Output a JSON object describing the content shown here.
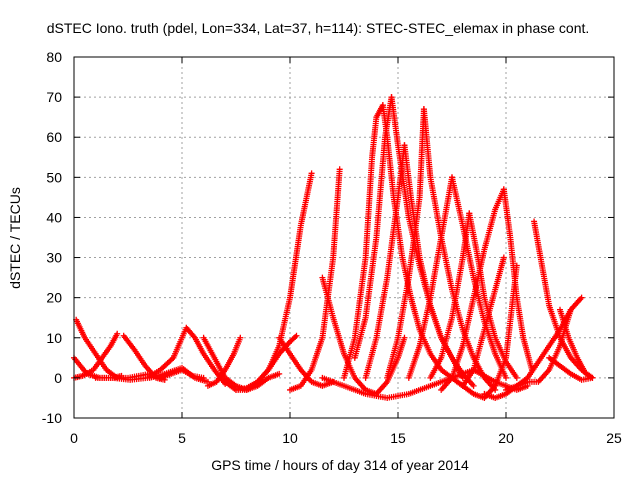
{
  "chart_data": {
    "type": "scatter",
    "title": "dSTEC Iono. truth (pdel, Lon=334, Lat=37, h=114): STEC-STEC_elemax in phase cont.",
    "xlabel": "GPS time / hours of day 314 of year 2014",
    "ylabel": "dSTEC  / TECUs",
    "xlim": [
      0,
      25
    ],
    "ylim": [
      -10,
      80
    ],
    "xticks": [
      "0",
      "5",
      "10",
      "15",
      "20",
      "25"
    ],
    "yticks": [
      "-10",
      "0",
      "10",
      "20",
      "30",
      "40",
      "50",
      "60",
      "70",
      "80"
    ],
    "grid": true,
    "marker": "+",
    "color": "#ff0000",
    "series": [
      {
        "x": [
          0.0,
          0.6,
          1.2,
          1.8,
          2.2
        ],
        "y": [
          5,
          1,
          0,
          0,
          0.5
        ]
      },
      {
        "x": [
          0.1,
          0.5,
          1.0,
          1.5,
          2.0,
          2.5,
          3.0,
          3.5
        ],
        "y": [
          14.5,
          10,
          6,
          2,
          0,
          0,
          0.5,
          1
        ]
      },
      {
        "x": [
          0.0,
          0.4,
          0.9,
          1.3,
          1.7,
          2.0
        ],
        "y": [
          0,
          0.5,
          2,
          5,
          8,
          11
        ]
      },
      {
        "x": [
          2.3,
          2.8,
          3.3,
          3.8,
          4.2
        ],
        "y": [
          10.5,
          7,
          3,
          0,
          -0.5
        ]
      },
      {
        "x": [
          1.0,
          1.8,
          2.6,
          3.4,
          4.0,
          4.6,
          5.2,
          5.6,
          6.0,
          6.5,
          7.0
        ],
        "y": [
          0,
          0,
          -0.5,
          0,
          2,
          5,
          12.5,
          10,
          6,
          2,
          -1.5
        ]
      },
      {
        "x": [
          3.5,
          4.2,
          5.0,
          5.6,
          6.2
        ],
        "y": [
          0,
          1,
          2.5,
          0,
          -1
        ]
      },
      {
        "x": [
          4.0,
          4.5,
          5.0,
          5.5,
          6.0
        ],
        "y": [
          0,
          1,
          2,
          0.5,
          0
        ]
      },
      {
        "x": [
          6.0,
          6.5,
          7.0,
          7.5,
          8.0,
          8.5,
          9.0,
          9.5
        ],
        "y": [
          10,
          5,
          0,
          -2,
          -3,
          -2,
          0,
          1
        ]
      },
      {
        "x": [
          6.2,
          6.6,
          7.0,
          7.4,
          7.7
        ],
        "y": [
          -2,
          -1,
          2,
          6,
          10
        ]
      },
      {
        "x": [
          7.0,
          7.5,
          8.0,
          8.5,
          9.0,
          9.5,
          10.0,
          10.3
        ],
        "y": [
          -1,
          -3,
          -3,
          -1,
          2,
          6,
          9,
          10.5
        ]
      },
      {
        "x": [
          7.5,
          8.0,
          8.5,
          9.0,
          9.5,
          10.0,
          10.5,
          11.0
        ],
        "y": [
          -3,
          -2.5,
          -1,
          2,
          8,
          20,
          38,
          51
        ]
      },
      {
        "x": [
          9.5,
          10.0,
          10.5,
          11.0,
          11.5,
          12.0
        ],
        "y": [
          10,
          6,
          2,
          -1,
          -2,
          -1
        ]
      },
      {
        "x": [
          10.0,
          10.5,
          11.0,
          11.5,
          12.0,
          12.3
        ],
        "y": [
          -3,
          -2,
          2,
          10,
          30,
          52
        ]
      },
      {
        "x": [
          11.5,
          12.0,
          12.5,
          13.0,
          13.5,
          14.0,
          14.5,
          15.0,
          15.3
        ],
        "y": [
          25,
          15,
          6,
          0,
          -3,
          -4,
          -1,
          5,
          10
        ]
      },
      {
        "x": [
          12.5,
          13.0,
          13.5,
          13.8,
          14.0,
          14.3
        ],
        "y": [
          0,
          10,
          30,
          55,
          65,
          68
        ]
      },
      {
        "x": [
          14.3,
          14.5,
          14.8,
          15.2,
          15.6,
          16.0,
          16.5,
          17.0,
          17.5,
          18.0
        ],
        "y": [
          68,
          60,
          45,
          30,
          20,
          12,
          6,
          2,
          0,
          -2
        ]
      },
      {
        "x": [
          13.0,
          13.5,
          14.0,
          14.4,
          14.7
        ],
        "y": [
          5,
          15,
          35,
          60,
          70
        ]
      },
      {
        "x": [
          14.7,
          15.0,
          15.5,
          16.0,
          16.5,
          17.0,
          17.5,
          18.0,
          18.5
        ],
        "y": [
          70,
          58,
          40,
          28,
          18,
          10,
          5,
          1,
          -2
        ]
      },
      {
        "x": [
          13.5,
          14.0,
          14.5,
          15.0,
          15.3
        ],
        "y": [
          0,
          10,
          25,
          45,
          58
        ]
      },
      {
        "x": [
          15.3,
          15.6,
          16.0,
          16.5,
          17.0,
          17.5,
          18.0
        ],
        "y": [
          58,
          45,
          30,
          18,
          10,
          5,
          0
        ]
      },
      {
        "x": [
          11.5,
          12.5,
          13.5,
          14.5,
          15.5,
          16.5,
          17.5,
          18.5,
          19.5,
          20.5,
          21.0
        ],
        "y": [
          0,
          -2,
          -4,
          -5,
          -4,
          -2,
          0,
          2,
          -1,
          -3,
          -2
        ]
      },
      {
        "x": [
          14.5,
          15.0,
          15.5,
          16.0,
          16.2
        ],
        "y": [
          0,
          10,
          25,
          45,
          67
        ]
      },
      {
        "x": [
          16.2,
          16.5,
          17.0,
          17.5,
          18.0,
          18.5,
          19.0,
          19.5
        ],
        "y": [
          67,
          50,
          35,
          22,
          12,
          5,
          0,
          -3
        ]
      },
      {
        "x": [
          15.5,
          16.0,
          16.5,
          17.0,
          17.5
        ],
        "y": [
          0,
          8,
          20,
          35,
          50
        ]
      },
      {
        "x": [
          17.5,
          18.0,
          18.5,
          19.0,
          19.5,
          20.0
        ],
        "y": [
          50,
          38,
          25,
          14,
          6,
          0
        ]
      },
      {
        "x": [
          16.5,
          17.0,
          17.5,
          18.0,
          18.3
        ],
        "y": [
          0,
          5,
          15,
          30,
          41
        ]
      },
      {
        "x": [
          18.3,
          18.7,
          19.0,
          19.5,
          20.0,
          20.5
        ],
        "y": [
          41,
          30,
          20,
          10,
          4,
          0
        ]
      },
      {
        "x": [
          17.0,
          17.5,
          18.0,
          18.5,
          19.0,
          19.5,
          19.9
        ],
        "y": [
          -3,
          0,
          8,
          20,
          32,
          42,
          47
        ]
      },
      {
        "x": [
          19.9,
          20.2,
          20.5,
          20.8,
          21.2
        ],
        "y": [
          47,
          35,
          20,
          10,
          2
        ]
      },
      {
        "x": [
          18.0,
          18.5,
          19.0,
          19.5,
          19.9
        ],
        "y": [
          -2,
          2,
          12,
          22,
          30
        ]
      },
      {
        "x": [
          17.5,
          18.0,
          18.5,
          19.0,
          19.5,
          20.0,
          20.5
        ],
        "y": [
          0,
          -2,
          -4,
          -5,
          -2,
          5,
          28
        ]
      },
      {
        "x": [
          19.0,
          19.5,
          20.0,
          20.5,
          21.0,
          21.5,
          22.0,
          22.5,
          23.0,
          23.5
        ],
        "y": [
          -4,
          -5,
          -4,
          -2,
          0,
          4,
          8,
          12,
          17,
          20
        ]
      },
      {
        "x": [
          21.3,
          21.6,
          22.0,
          22.5,
          23.0,
          23.5,
          24.0
        ],
        "y": [
          39,
          30,
          18,
          10,
          5,
          2,
          0
        ]
      },
      {
        "x": [
          20.0,
          20.5,
          21.0,
          21.5,
          22.0,
          22.5,
          23.0
        ],
        "y": [
          -3,
          -2,
          -1,
          -1,
          2,
          8,
          17
        ]
      },
      {
        "x": [
          22.0,
          22.5,
          23.0,
          23.5,
          24.0
        ],
        "y": [
          5,
          3,
          1,
          -0.5,
          0
        ]
      },
      {
        "x": [
          22.5,
          22.9,
          23.3,
          23.7,
          24.0
        ],
        "y": [
          17,
          10,
          5,
          1,
          0
        ]
      }
    ]
  }
}
